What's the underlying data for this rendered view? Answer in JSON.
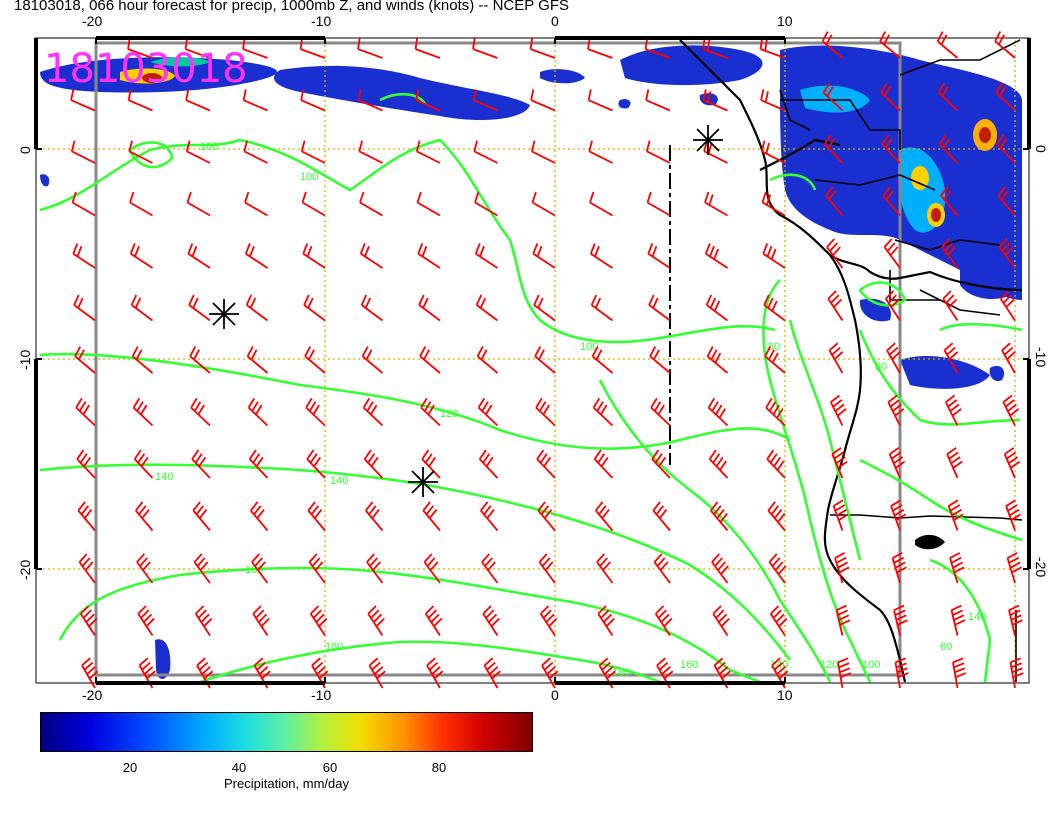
{
  "title": "18103018, 066 hour forecast for precip, 1000mb Z, and winds (knots) -- NCEP GFS",
  "datestamp": "18103018",
  "axes": {
    "lon_ticks": [
      "-20",
      "-10",
      "0",
      "10"
    ],
    "lat_ticks": [
      "0",
      "-10",
      "-20"
    ]
  },
  "contours": [
    {
      "label": "100"
    },
    {
      "label": "100"
    },
    {
      "label": "100"
    },
    {
      "label": "120"
    },
    {
      "label": "140"
    },
    {
      "label": "140"
    },
    {
      "label": "160"
    },
    {
      "label": "180"
    },
    {
      "label": "180"
    },
    {
      "label": "160"
    },
    {
      "label": "140"
    },
    {
      "label": "120"
    },
    {
      "label": "100"
    },
    {
      "label": "80"
    },
    {
      "label": "60"
    },
    {
      "label": "140"
    },
    {
      "label": "80"
    }
  ],
  "colorbar": {
    "ticks": [
      "20",
      "40",
      "60",
      "80"
    ],
    "label": "Precipitation, mm/day"
  },
  "colors": {
    "wind": "#ff0000",
    "contour": "#33ff33",
    "grid": "#d4b400",
    "coast": "#000000",
    "datestamp": "#ff33ff"
  }
}
